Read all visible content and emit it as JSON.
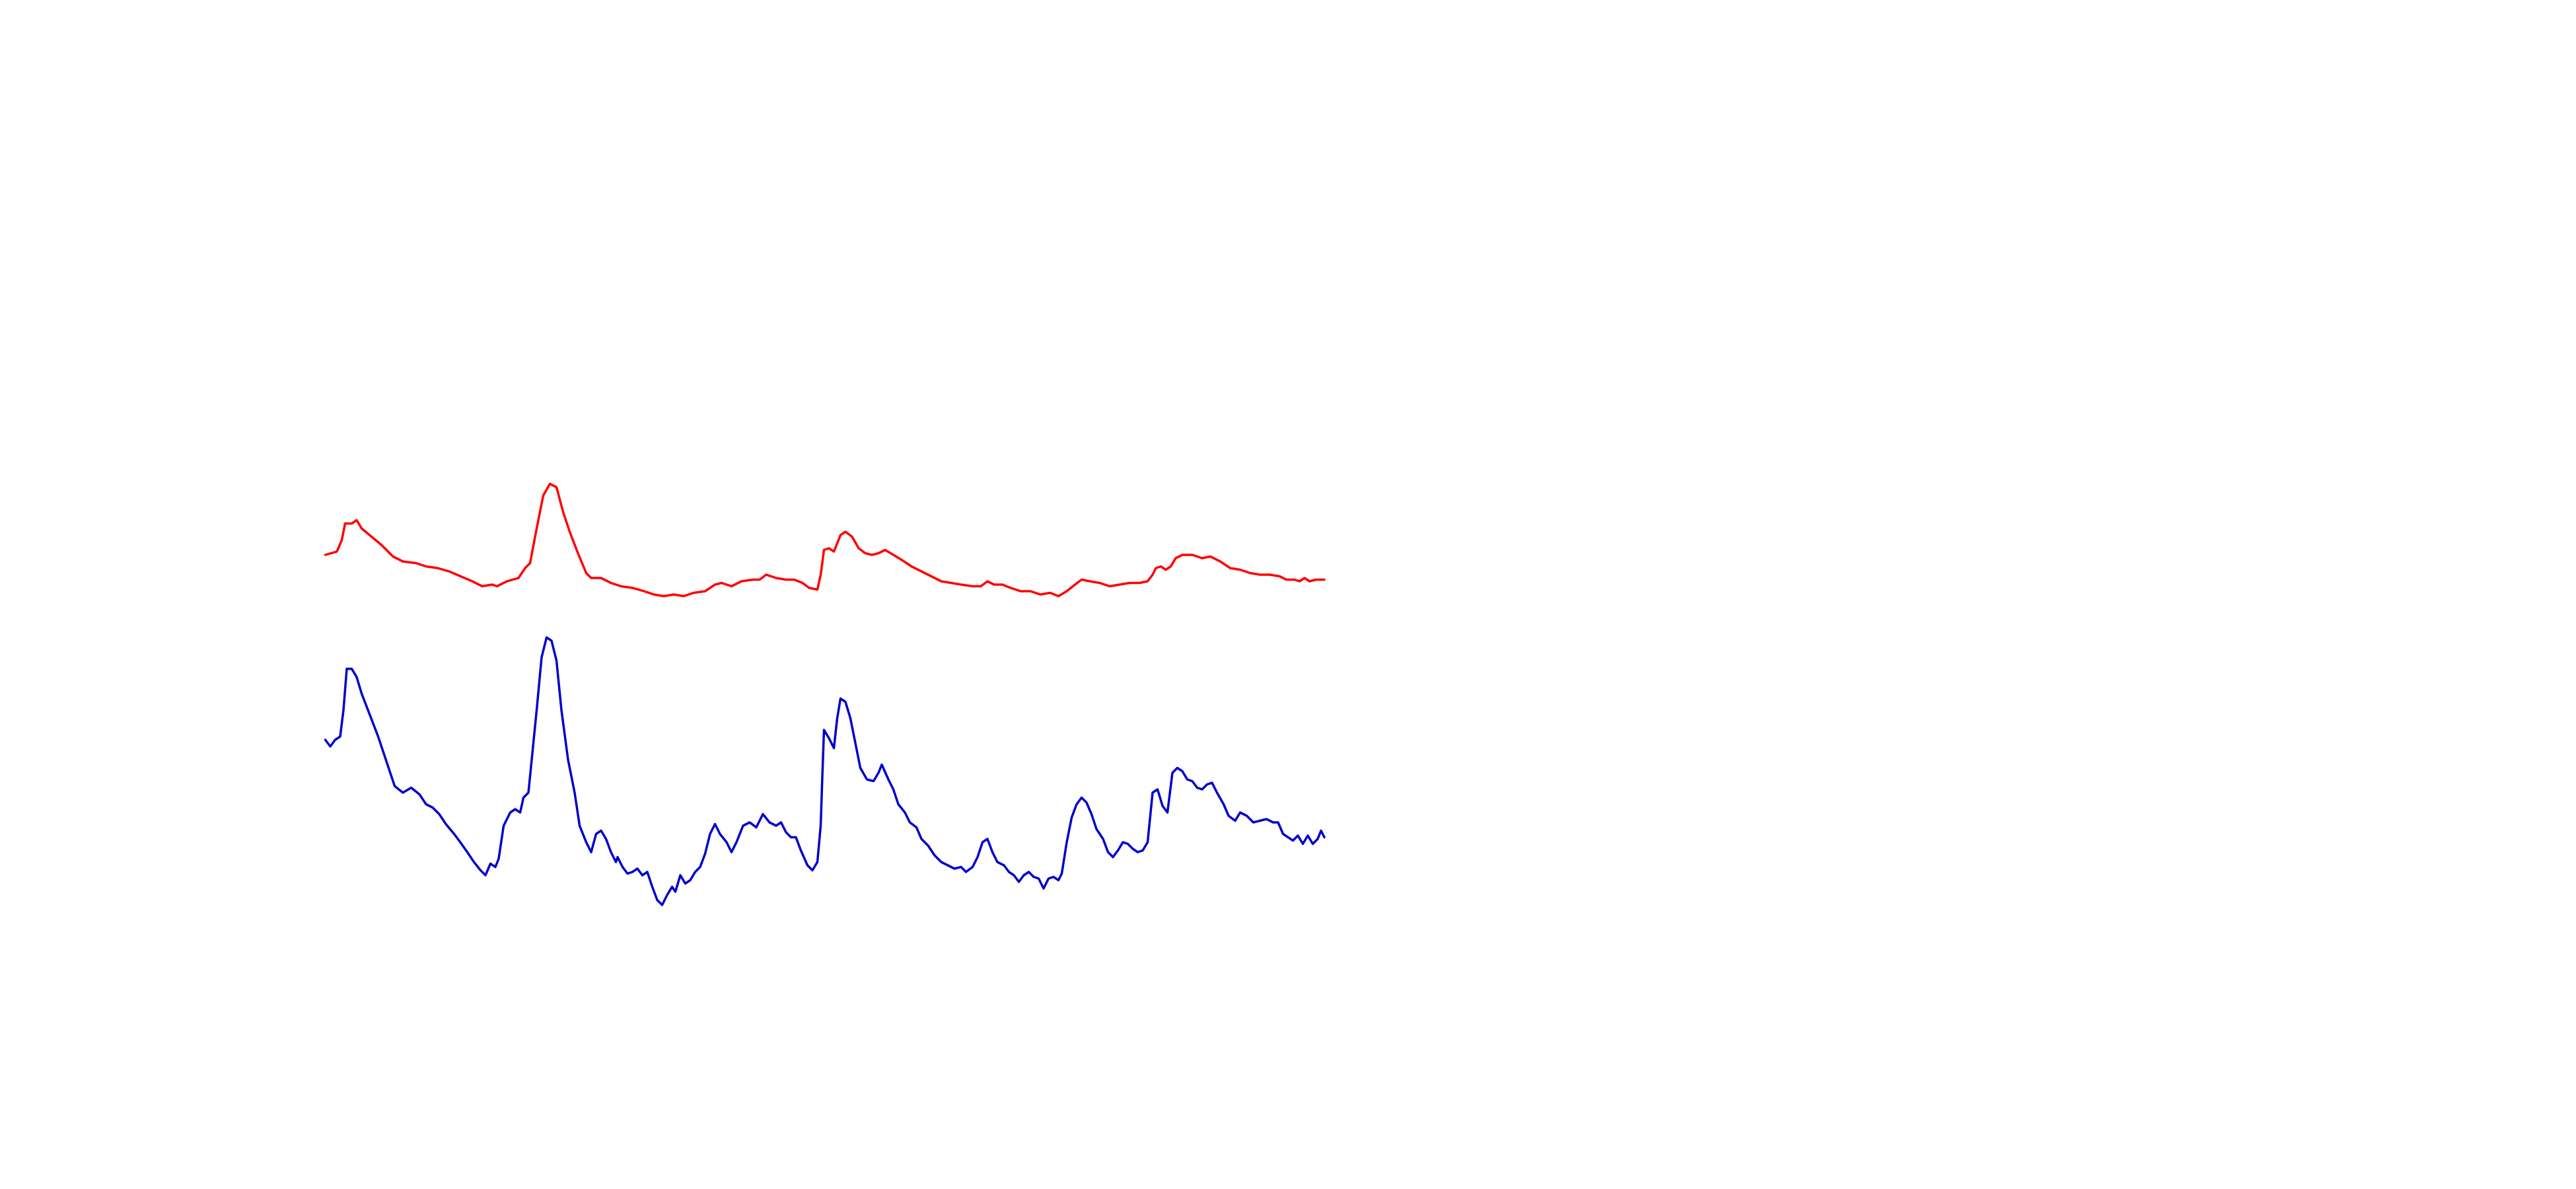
{
  "chart_data": {
    "type": "line",
    "xlim": [
      0,
      605
    ],
    "ylim": [
      0,
      280
    ],
    "series": [
      {
        "color": "#ff0000",
        "x": [
          0,
          7,
          10,
          12,
          16,
          19,
          22,
          28,
          34,
          41,
          47,
          55,
          61,
          68,
          75,
          82,
          89,
          95,
          101,
          104,
          110,
          117,
          121,
          124,
          128,
          132,
          136,
          140,
          144,
          148,
          153,
          158,
          161,
          167,
          173,
          179,
          186,
          193,
          199,
          205,
          211,
          217,
          223,
          230,
          236,
          240,
          246,
          252,
          259,
          263,
          267,
          273,
          279,
          284,
          289,
          293,
          298,
          300,
          302,
          305,
          308,
          312,
          315,
          319,
          323,
          327,
          331,
          335,
          339,
          344,
          349,
          355,
          361,
          367,
          373,
          379,
          385,
          392,
          397,
          401,
          405,
          410,
          415,
          421,
          427,
          433,
          439,
          444,
          449,
          454,
          458,
          463,
          469,
          475,
          481,
          487,
          493,
          498,
          501,
          503,
          506,
          509,
          512,
          515,
          519,
          525,
          531,
          536,
          542,
          548,
          554,
          560,
          566,
          572,
          578,
          582,
          587,
          590,
          593,
          596,
          600,
          605
        ],
        "values": [
          224,
          226,
          233,
          243,
          243,
          245,
          240,
          235,
          230,
          223,
          220,
          219,
          217,
          216,
          214,
          211,
          208,
          205,
          206,
          205,
          208,
          210,
          216,
          219,
          240,
          260,
          267,
          265,
          250,
          238,
          225,
          213,
          210,
          210,
          207,
          205,
          204,
          202,
          200,
          199,
          200,
          199,
          201,
          202,
          206,
          207,
          205,
          208,
          209,
          209,
          212,
          210,
          209,
          209,
          207,
          204,
          203,
          212,
          227,
          228,
          226,
          236,
          238,
          235,
          228,
          225,
          224,
          225,
          227,
          224,
          221,
          217,
          214,
          211,
          208,
          207,
          206,
          205,
          205,
          208,
          206,
          206,
          204,
          202,
          202,
          200,
          201,
          199,
          202,
          206,
          209,
          208,
          207,
          205,
          206,
          207,
          207,
          208,
          212,
          216,
          217,
          215,
          217,
          222,
          224,
          224,
          222,
          223,
          220,
          216,
          215,
          213,
          212,
          212,
          211,
          209,
          209,
          208,
          210,
          208,
          209,
          209
        ]
      },
      {
        "color": "#0000cc",
        "x": [
          0,
          3,
          6,
          9,
          11,
          13,
          16,
          19,
          22,
          27,
          32,
          37,
          42,
          47,
          52,
          57,
          61,
          65,
          69,
          73,
          78,
          81,
          86,
          90,
          94,
          97,
          100,
          103,
          105,
          108,
          112,
          115,
          118,
          120,
          123,
          125,
          128,
          131,
          134,
          137,
          140,
          143,
          147,
          151,
          154,
          158,
          161,
          164,
          167,
          170,
          173,
          176,
          177,
          180,
          183,
          186,
          189,
          192,
          195,
          198,
          201,
          204,
          207,
          210,
          212,
          215,
          218,
          221,
          224,
          227,
          230,
          233,
          236,
          239,
          243,
          246,
          249,
          253,
          257,
          261,
          265,
          269,
          273,
          276,
          279,
          282,
          285,
          288,
          292,
          295,
          298,
          300,
          301,
          302,
          305,
          308,
          310,
          312,
          315,
          318,
          321,
          324,
          328,
          332,
          335,
          337,
          341,
          344,
          347,
          351,
          354,
          358,
          361,
          365,
          369,
          373,
          377,
          381,
          385,
          388,
          392,
          395,
          398,
          401,
          404,
          407,
          411,
          414,
          417,
          420,
          423,
          426,
          429,
          432,
          435,
          438,
          441,
          444,
          446,
          449,
          452,
          455,
          458,
          461,
          464,
          467,
          471,
          474,
          477,
          480,
          483,
          486,
          489,
          492,
          495,
          498,
          501,
          504,
          507,
          510,
          513,
          516,
          519,
          522,
          525,
          528,
          531,
          534,
          537,
          540,
          544,
          547,
          551,
          554,
          558,
          562,
          566,
          570,
          574,
          577,
          580,
          583,
          586,
          589,
          592,
          595,
          598,
          601,
          603,
          605
        ],
        "values": [
          112,
          108,
          112,
          114,
          130,
          155,
          155,
          150,
          140,
          127,
          114,
          99,
          84,
          80,
          83,
          79,
          73,
          71,
          67,
          61,
          55,
          51,
          44,
          38,
          33,
          30,
          37,
          35,
          40,
          60,
          68,
          70,
          68,
          77,
          80,
          100,
          130,
          162,
          174,
          172,
          160,
          130,
          100,
          80,
          60,
          50,
          44,
          55,
          57,
          52,
          44,
          38,
          41,
          35,
          31,
          32,
          34,
          30,
          32,
          23,
          15,
          12,
          18,
          23,
          20,
          30,
          25,
          27,
          32,
          35,
          43,
          55,
          61,
          55,
          50,
          44,
          50,
          60,
          62,
          59,
          67,
          62,
          60,
          62,
          56,
          53,
          53,
          45,
          36,
          33,
          38,
          60,
          90,
          118,
          113,
          107,
          125,
          137,
          135,
          125,
          110,
          95,
          88,
          87,
          92,
          97,
          88,
          82,
          73,
          68,
          62,
          59,
          52,
          48,
          42,
          38,
          36,
          34,
          35,
          32,
          35,
          41,
          50,
          52,
          44,
          38,
          36,
          32,
          30,
          26,
          30,
          32,
          29,
          28,
          22,
          28,
          29,
          27,
          31,
          50,
          65,
          73,
          77,
          74,
          67,
          58,
          52,
          44,
          41,
          45,
          50,
          49,
          46,
          44,
          45,
          50,
          80,
          82,
          72,
          68,
          92,
          95,
          93,
          88,
          87,
          83,
          82,
          85,
          86,
          80,
          73,
          66,
          63,
          68,
          66,
          62,
          63,
          64,
          62,
          62,
          55,
          53,
          51,
          54,
          49,
          54,
          49,
          52,
          57,
          53
        ]
      }
    ]
  }
}
